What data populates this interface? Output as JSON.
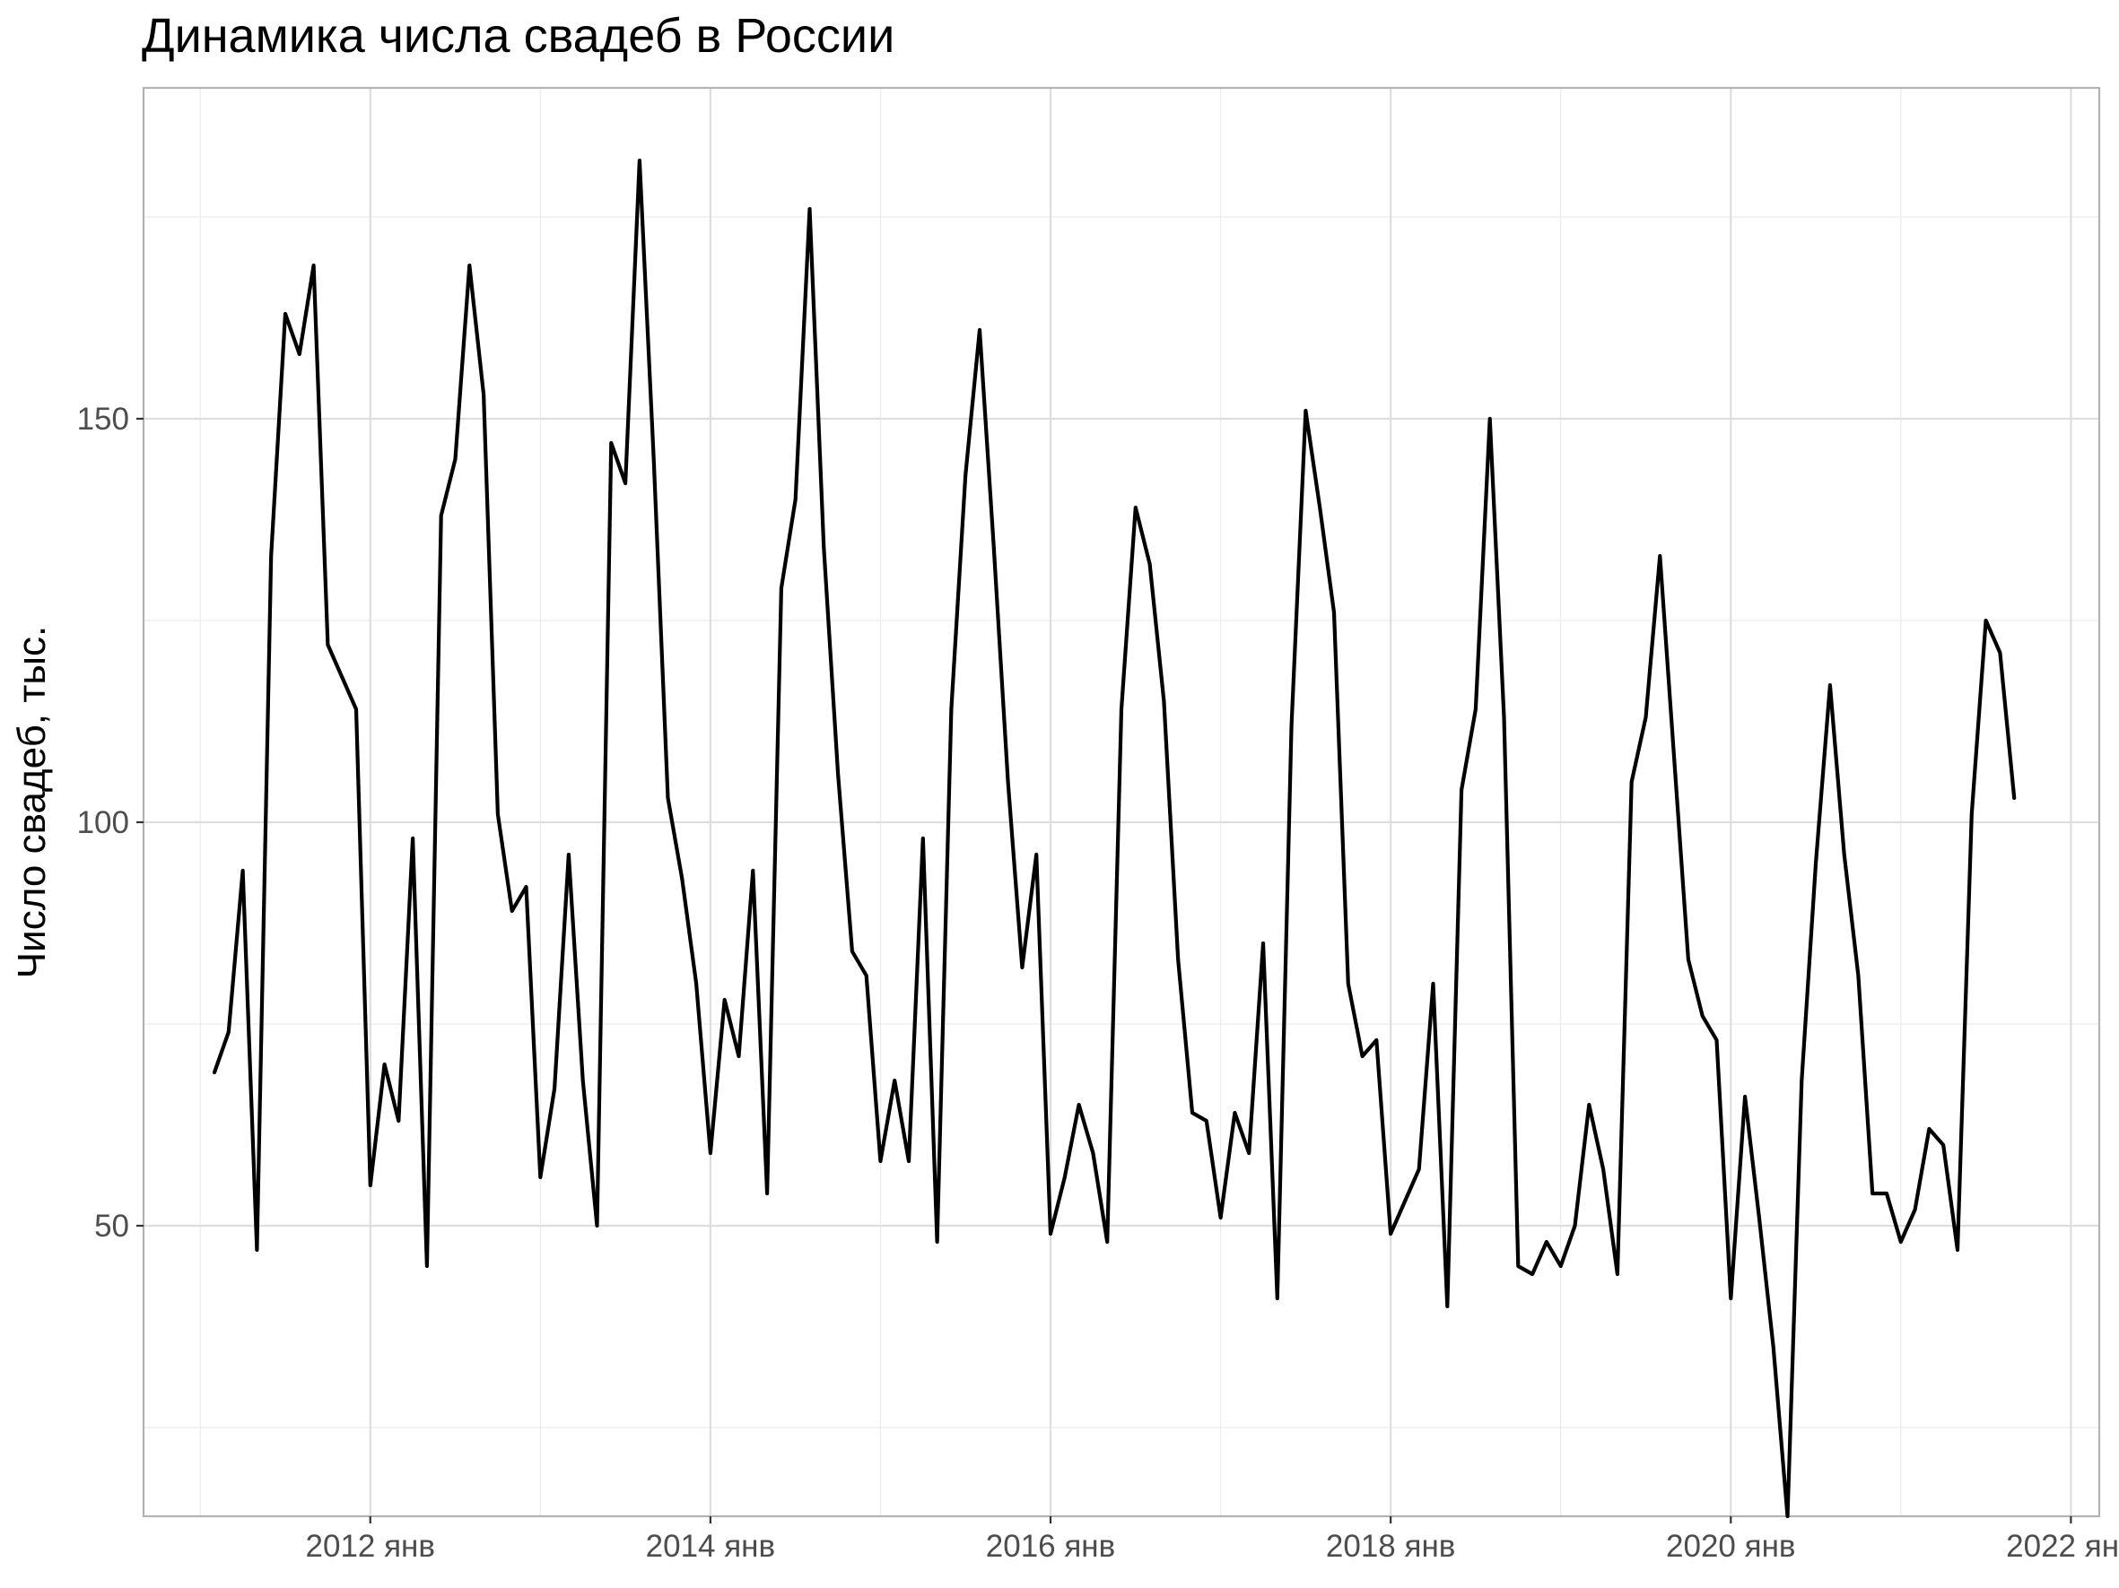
{
  "chart_data": {
    "type": "line",
    "title": "Динамика числа свадеб в России",
    "xlabel": "",
    "ylabel": "Число свадеб, тыс.",
    "x_start": "2011-02",
    "x_frequency": "monthly",
    "xlim": [
      "2010-09",
      "2022-03"
    ],
    "ylim": [
      14,
      191
    ],
    "x_ticks": [
      {
        "date": "2012-01",
        "label": "2012 янв"
      },
      {
        "date": "2014-01",
        "label": "2014 янв"
      },
      {
        "date": "2016-01",
        "label": "2016 янв"
      },
      {
        "date": "2018-01",
        "label": "2018 янв"
      },
      {
        "date": "2020-01",
        "label": "2020 янв"
      },
      {
        "date": "2022-01",
        "label": "2022 янв"
      }
    ],
    "y_ticks": [
      50,
      100,
      150
    ],
    "y_minor_ticks": [
      25,
      75,
      125,
      175
    ],
    "grid": true,
    "legend": "none",
    "series": [
      {
        "color": "#000000",
        "values": [
          69,
          74,
          94,
          47,
          133,
          163,
          158,
          169,
          122,
          118,
          114,
          55,
          70,
          63,
          98,
          45,
          138,
          145,
          169,
          153,
          101,
          89,
          92,
          56,
          67,
          96,
          68,
          50,
          147,
          142,
          182,
          145,
          103,
          93,
          80,
          59,
          78,
          71,
          94,
          54,
          129,
          140,
          176,
          134,
          106,
          84,
          81,
          58,
          68,
          58,
          98,
          48,
          114,
          143,
          161,
          134,
          105,
          82,
          96,
          49,
          56,
          65,
          59,
          48,
          114,
          139,
          132,
          115,
          83,
          64,
          63,
          51,
          64,
          59,
          85,
          41,
          112,
          151,
          139,
          126,
          80,
          71,
          73,
          49,
          53,
          57,
          80,
          40,
          104,
          114,
          150,
          113,
          45,
          44,
          48,
          45,
          50,
          65,
          57,
          44,
          105,
          113,
          133,
          108,
          83,
          76,
          73,
          41,
          66,
          51,
          35,
          14,
          68,
          95,
          117,
          96,
          81,
          54,
          54,
          48,
          52,
          62,
          60,
          47,
          101,
          125,
          121,
          103
        ]
      }
    ]
  }
}
